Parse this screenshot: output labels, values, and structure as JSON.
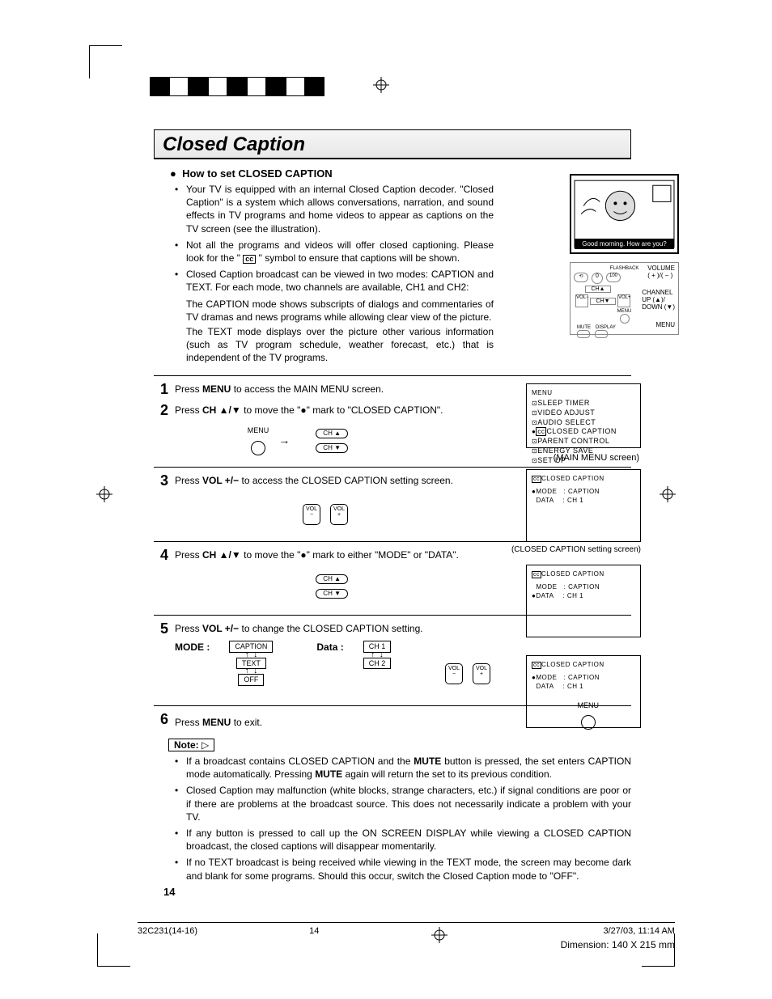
{
  "title": "Closed Caption",
  "head_bullet": "How to set CLOSED CAPTION",
  "intro": [
    "Your TV is equipped with an internal Closed Caption decoder. \"Closed Caption\" is a system which allows conversations, narration, and sound effects in TV programs and home videos to appear as captions on the TV screen (see the illustration).",
    "Not all the programs and videos will offer closed captioning. Please look for the \" [cc] \" symbol to ensure that captions will be shown.",
    "Closed Caption broadcast can be viewed in two modes: CAPTION and TEXT. For each mode, two channels are available, CH1 and CH2:"
  ],
  "caption_para": "The CAPTION mode shows subscripts of dialogs and commentaries of TV dramas and news programs while allowing clear view of the picture.",
  "text_para": "The TEXT mode displays over the picture other various information (such as TV program schedule, weather forecast, etc.) that is independent of the TV programs.",
  "tv_banner": "Good morning. How are you?",
  "remote_labels": {
    "volume": "VOLUME",
    "volsym": "( + )/( − )",
    "channel": "CHANNEL",
    "updown": "UP (▲)/\nDOWN (▼)",
    "menu": "MENU"
  },
  "steps": {
    "s1": {
      "num": "1",
      "t1": "Press ",
      "b1": "MENU",
      "t2": " to access the MAIN MENU screen."
    },
    "s2": {
      "num": "2",
      "t1": "Press ",
      "b1": "CH ▲/▼",
      "t2": " to move the \"●\" mark to \"CLOSED CAPTION\"."
    },
    "s3": {
      "num": "3",
      "t1": "Press ",
      "b1": "VOL +/−",
      "t2": " to access the CLOSED CAPTION setting screen."
    },
    "s4": {
      "num": "4",
      "t1": "Press ",
      "b1": "CH ▲/▼",
      "t2": " to move the \"●\" mark to either \"MODE\" or \"DATA\"."
    },
    "s5": {
      "num": "5",
      "t1": "Press ",
      "b1": "VOL +/−",
      "t2": " to change the CLOSED CAPTION setting."
    },
    "s6": {
      "num": "6",
      "t1": "Press ",
      "b1": "MENU",
      "t2": " to exit."
    }
  },
  "rc": {
    "menu": "MENU",
    "cha": "CH ▲",
    "chv": "CH ▼",
    "volm": "VOL\n−",
    "volp": "VOL\n+"
  },
  "mode_label": "MODE  :",
  "data_label": "Data  :",
  "mode_opts": [
    "CAPTION",
    "TEXT",
    "OFF"
  ],
  "data_opts": [
    "CH 1",
    "CH 2"
  ],
  "menu_screen": {
    "title": "MENU",
    "items": [
      "SLEEP TIMER",
      "VIDEO ADJUST",
      "AUDIO SELECT",
      "CLOSED CAPTION",
      "PARENT CONTROL",
      "ENERGY SAVE",
      "SET UP"
    ],
    "caption": "(MAIN MENU screen)"
  },
  "cc_screen": {
    "title": "CLOSED CAPTION",
    "rows": [
      [
        "MODE",
        ": CAPTION"
      ],
      [
        "DATA",
        ": CH 1"
      ]
    ],
    "caption": "(CLOSED CAPTION setting screen)"
  },
  "note_label": "Note:",
  "notes": [
    {
      "pre": "If a broadcast contains CLOSED CAPTION and the ",
      "b1": "MUTE",
      "mid": " button is pressed, the set enters CAPTION mode automatically. Pressing ",
      "b2": "MUTE",
      "post": " again will return the set to its previous condition."
    },
    {
      "text": "Closed Caption may malfunction (white blocks, strange characters, etc.) if signal conditions are poor or if there are problems at the broadcast source. This does not necessarily indicate a problem with your TV."
    },
    {
      "text": "If any button is pressed to call up the ON SCREEN DISPLAY while viewing a CLOSED CAPTION broadcast, the closed captions will disappear momentarily."
    },
    {
      "text": "If no TEXT broadcast is being received while viewing in the TEXT mode, the screen may become dark and blank for some programs. Should this occur, switch the Closed Caption mode to \"OFF\"."
    }
  ],
  "page_number": "14",
  "footer": {
    "file": "32C231(14-16)",
    "page": "14",
    "date": "3/27/03, 11:14 AM",
    "dim": "Dimension: 140  X 215 mm"
  },
  "color_bar1": [
    "#000000",
    "#ffffff",
    "#000000",
    "#ffffff",
    "#000000",
    "#ffffff",
    "#000000",
    "#ffffff",
    "#000000"
  ],
  "color_bar2": [
    "#00adee",
    "#ec008c",
    "#fff200",
    "#808080",
    "#ffffff",
    "#00a550",
    "#9d0b70",
    "#f7931e",
    "#00aeef",
    "#ec008c"
  ]
}
